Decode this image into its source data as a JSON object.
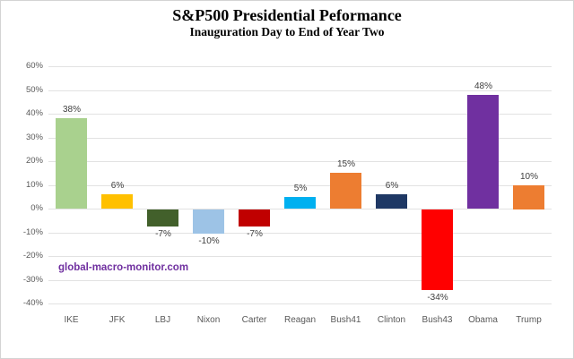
{
  "header": {
    "title": "S&P500 Presidential Peformance",
    "subtitle": "Inauguration Day to End of Year Two"
  },
  "watermark": "global-macro-monitor.com",
  "colors": {
    "grid": "#e2e2e2",
    "axis_text": "#595959",
    "value_text": "#404040",
    "watermark": "#7030a0"
  },
  "chart_data": {
    "type": "bar",
    "title": "S&P500 Presidential Peformance",
    "subtitle": "Inauguration Day to End of Year Two",
    "xlabel": "",
    "ylabel": "",
    "ylim": [
      -40,
      60
    ],
    "ytick_step": 10,
    "ytick_labels": [
      "60%",
      "50%",
      "40%",
      "30%",
      "20%",
      "10%",
      "0%",
      "-10%",
      "-20%",
      "-30%",
      "-40%"
    ],
    "grid": true,
    "legend": false,
    "categories": [
      "IKE",
      "JFK",
      "LBJ",
      "Nixon",
      "Carter",
      "Reagan",
      "Bush41",
      "Clinton",
      "Bush43",
      "Obama",
      "Trump"
    ],
    "values": [
      38,
      6,
      -7,
      -10,
      -7,
      5,
      15,
      6,
      -34,
      48,
      10
    ],
    "value_labels": [
      "38%",
      "6%",
      "-7%",
      "-10%",
      "-7%",
      "5%",
      "15%",
      "6%",
      "-34%",
      "48%",
      "10%"
    ],
    "bar_colors": [
      "#a9d18e",
      "#ffc000",
      "#42602b",
      "#9dc3e6",
      "#c00000",
      "#00b0f0",
      "#ed7d31",
      "#1f3864",
      "#ff0000",
      "#7030a0",
      "#ed7d31"
    ]
  }
}
